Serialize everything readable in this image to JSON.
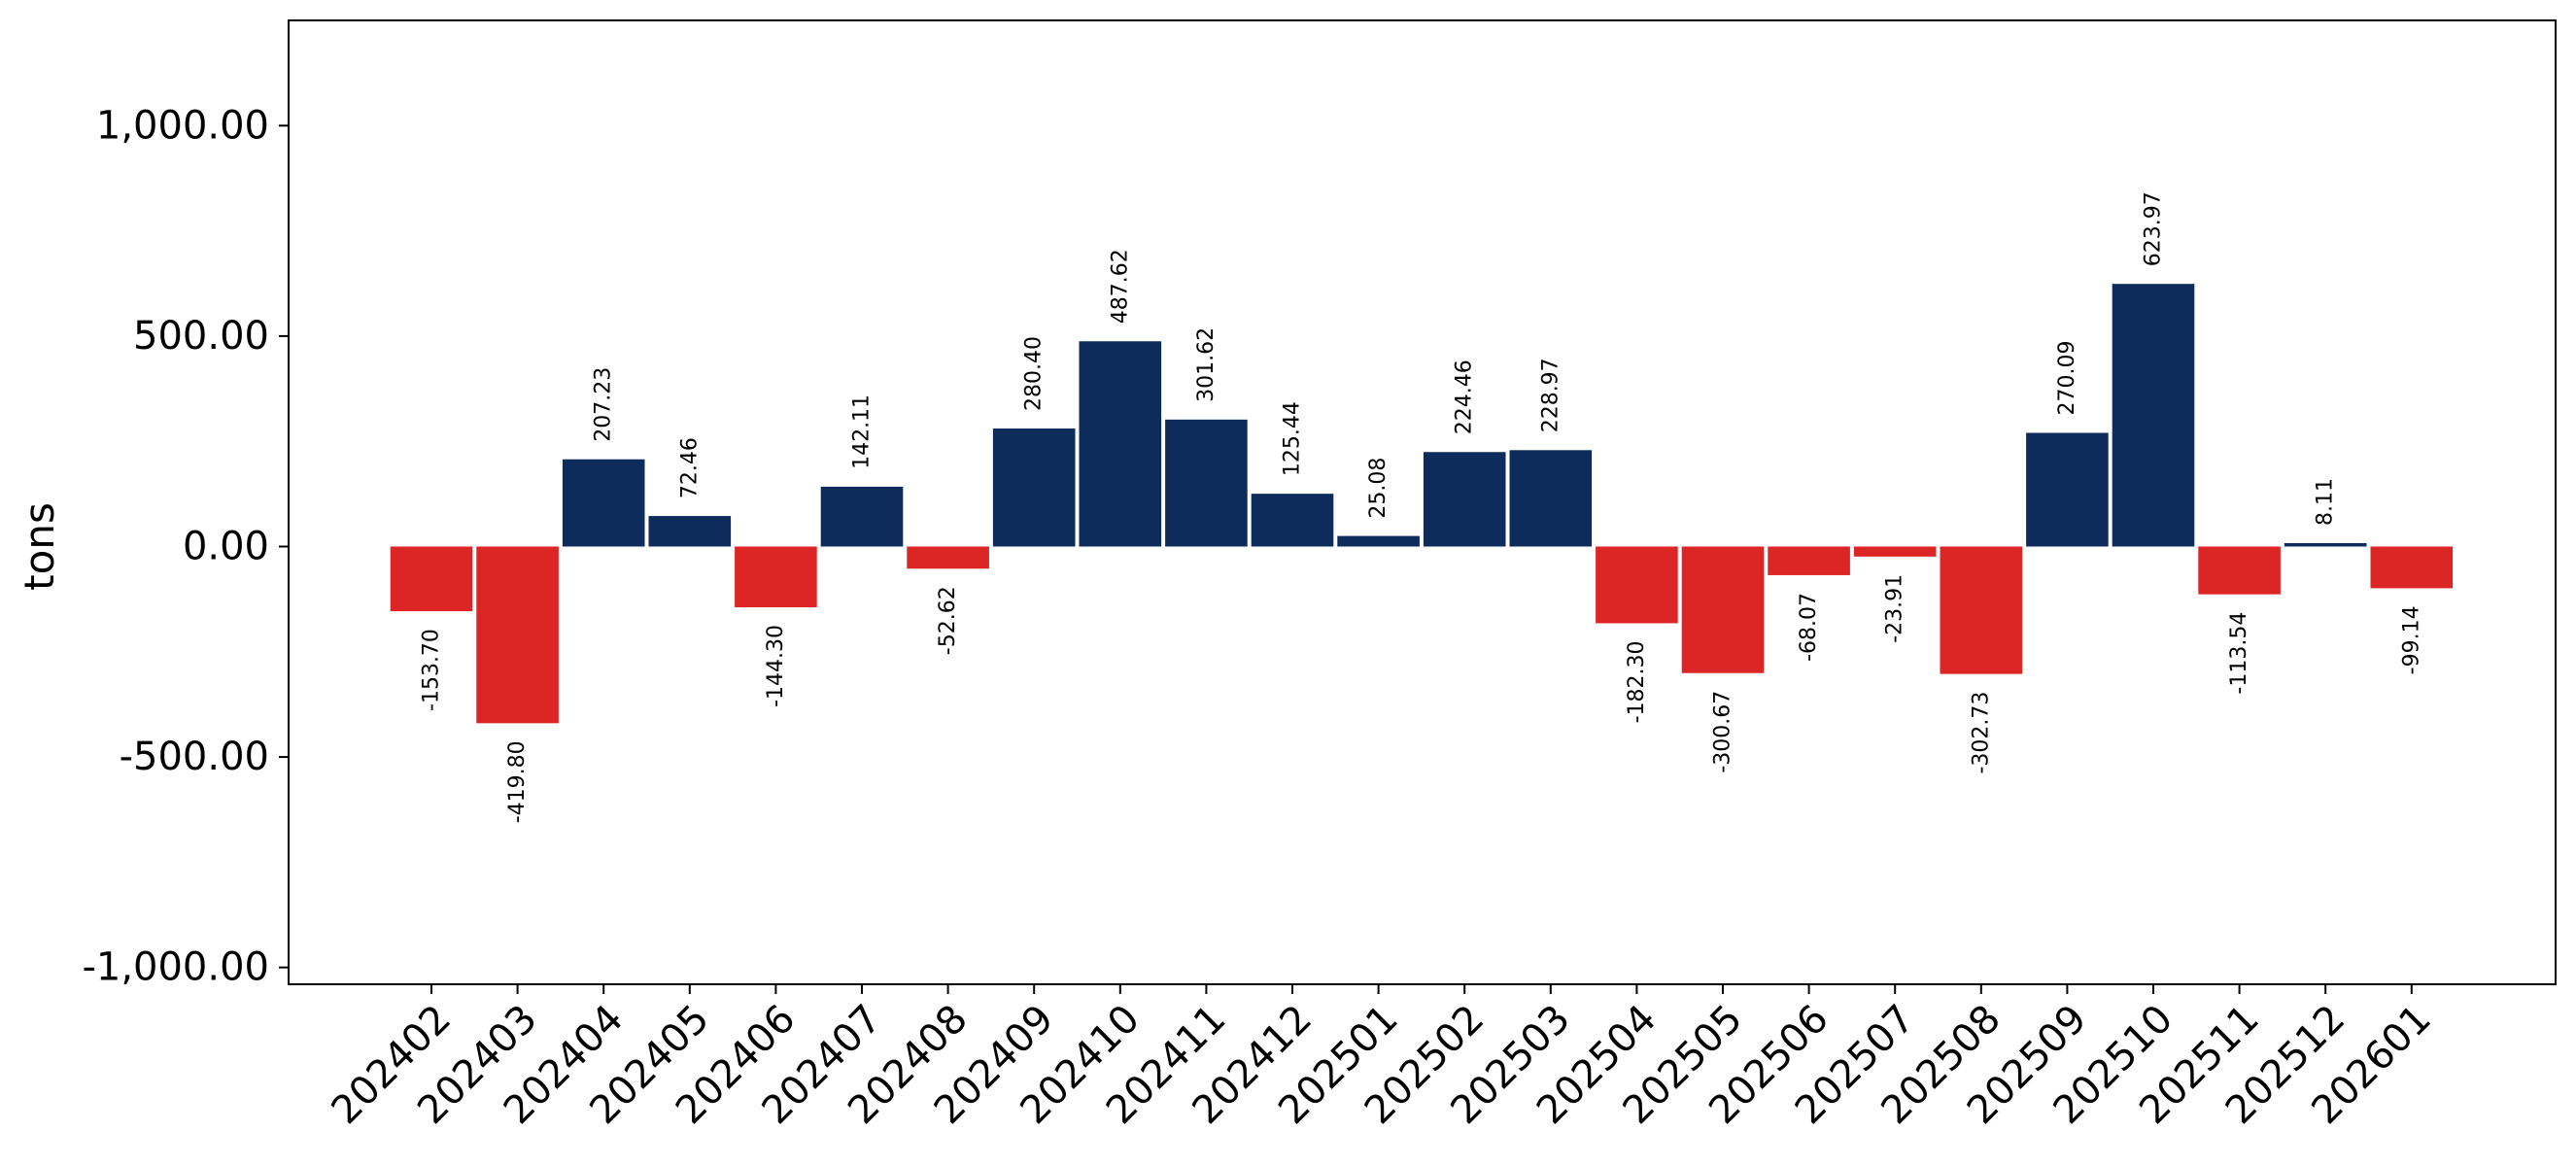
{
  "chart_data": {
    "type": "bar",
    "ylabel": "tons",
    "ylim": [
      -1040,
      1250
    ],
    "yticks": [
      -1000,
      -500,
      0,
      500,
      1000
    ],
    "ytick_labels": [
      "-1,000.00",
      "-500.00",
      "0.00",
      "500.00",
      "1,000.00"
    ],
    "categories": [
      "202402",
      "202403",
      "202404",
      "202405",
      "202406",
      "202407",
      "202408",
      "202409",
      "202410",
      "202411",
      "202412",
      "202501",
      "202502",
      "202503",
      "202504",
      "202505",
      "202506",
      "202507",
      "202508",
      "202509",
      "202510",
      "202511",
      "202512",
      "202601"
    ],
    "values": [
      -153.7,
      -419.8,
      207.23,
      72.46,
      -144.3,
      142.11,
      -52.62,
      280.4,
      487.62,
      301.62,
      125.44,
      25.08,
      224.46,
      228.97,
      -182.3,
      -300.67,
      -68.07,
      -23.91,
      -302.73,
      270.09,
      623.97,
      -113.54,
      8.11,
      -99.14
    ],
    "value_labels": [
      "-153.70",
      "-419.80",
      "207.23",
      "72.46",
      "-144.30",
      "142.11",
      "-52.62",
      "280.40",
      "487.62",
      "301.62",
      "125.44",
      "25.08",
      "224.46",
      "228.97",
      "-182.30",
      "-300.67",
      "-68.07",
      "-23.91",
      "-302.73",
      "270.09",
      "623.97",
      "-113.54",
      "8.11",
      "-99.14"
    ],
    "colors": {
      "positive": "#0d2b5b",
      "negative": "#dc2626"
    },
    "grid": false,
    "legend": "none"
  }
}
